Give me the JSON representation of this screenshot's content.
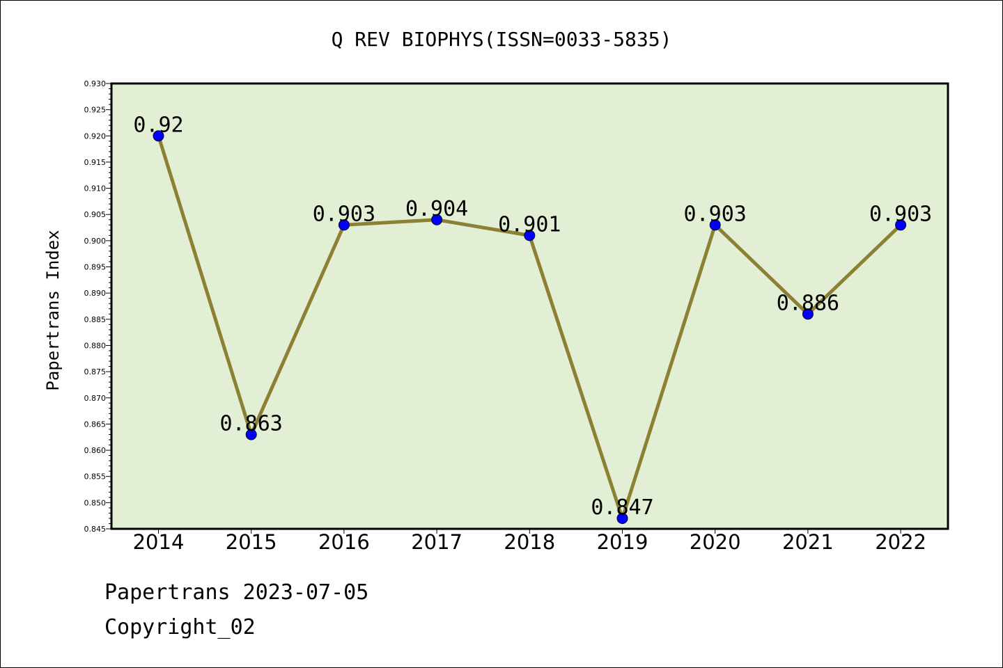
{
  "chart_data": {
    "type": "line",
    "title": "Q REV BIOPHYS(ISSN=0033-5835)",
    "xlabel": "",
    "ylabel": "Papertrans Index",
    "categories": [
      "2014",
      "2015",
      "2016",
      "2017",
      "2018",
      "2019",
      "2020",
      "2021",
      "2022"
    ],
    "series": [
      {
        "values": [
          0.92,
          0.863,
          0.903,
          0.904,
          0.901,
          0.847,
          0.903,
          0.886,
          0.903
        ],
        "labels": [
          "0.92",
          "0.863",
          "0.903",
          "0.904",
          "0.901",
          "0.847",
          "0.903",
          "0.886",
          "0.903"
        ]
      }
    ],
    "ylim": [
      0.845,
      0.93
    ],
    "yticks": [
      "0.845",
      "0.850",
      "0.855",
      "0.860",
      "0.865",
      "0.870",
      "0.875",
      "0.880",
      "0.885",
      "0.890",
      "0.895",
      "0.900",
      "0.905",
      "0.910",
      "0.915",
      "0.920",
      "0.925",
      "0.930"
    ],
    "grid": false,
    "legend": "none",
    "colors": {
      "plot_background": "#e2efd5",
      "line": "#8b8034",
      "marker": "#0000ff"
    }
  },
  "footer": {
    "date_line": "Papertrans 2023-07-05",
    "copyright": "Copyright_02"
  }
}
